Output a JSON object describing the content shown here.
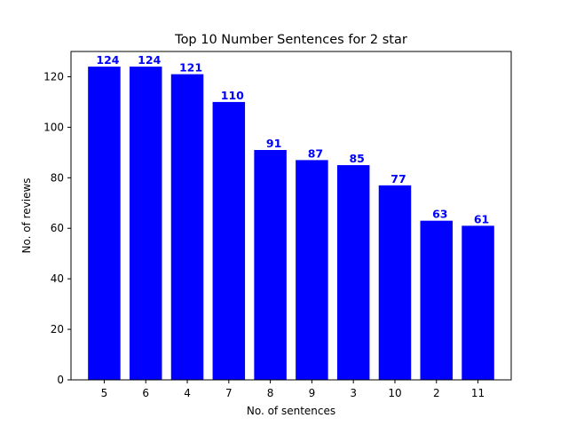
{
  "chart_data": {
    "type": "bar",
    "title": "Top 10 Number Sentences for 2 star",
    "xlabel": "No. of sentences",
    "ylabel": "No. of reviews",
    "categories": [
      "5",
      "6",
      "4",
      "7",
      "8",
      "9",
      "3",
      "10",
      "2",
      "11"
    ],
    "values": [
      124,
      124,
      121,
      110,
      91,
      87,
      85,
      77,
      63,
      61
    ],
    "data_labels": [
      "124",
      "124",
      "121",
      "110",
      "91",
      "87",
      "85",
      "77",
      "63",
      "61"
    ],
    "ylim": [
      0,
      130
    ],
    "yticks": [
      0,
      20,
      40,
      60,
      80,
      100,
      120
    ],
    "ytick_labels": [
      "0",
      "20",
      "40",
      "60",
      "80",
      "100",
      "120"
    ],
    "grid": false,
    "legend": "none",
    "colors": {
      "bar": "#0000ff",
      "data_label": "#0000ff",
      "axis": "#000000",
      "background": "#ffffff"
    }
  }
}
